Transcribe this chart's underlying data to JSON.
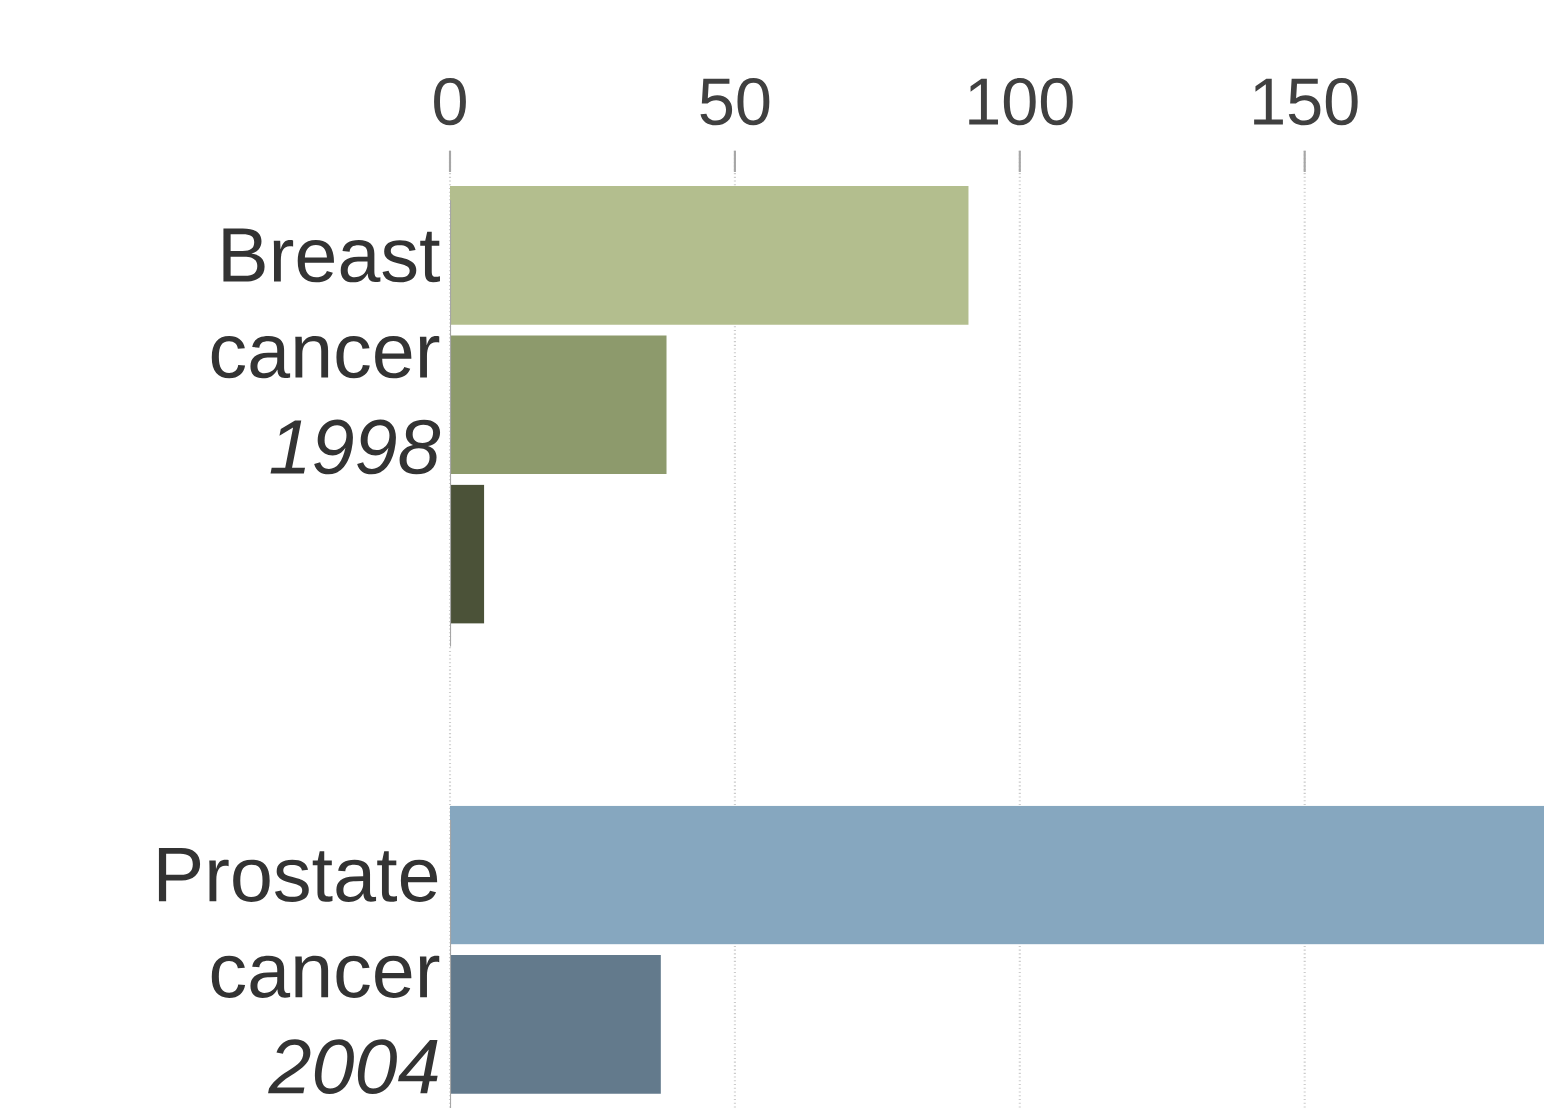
{
  "chart_data": {
    "type": "bar",
    "orientation": "horizontal",
    "categories": [
      "Breast cancer *1998*",
      "Prostate cancer *2004*"
    ],
    "series": [
      {
        "colors": [
          "#b3be8e",
          "#86a7bf"
        ],
        "values": [
          91,
          192
        ]
      },
      {
        "colors": [
          "#8d9a6c",
          "#637a8c"
        ],
        "values": [
          38,
          37
        ]
      },
      {
        "colors": [
          "#4b5238",
          "#4a5866"
        ],
        "values": [
          6,
          null
        ]
      }
    ],
    "xlim": [
      0,
      192
    ],
    "xticks": [
      0,
      50,
      100,
      150
    ],
    "grid": "x"
  }
}
